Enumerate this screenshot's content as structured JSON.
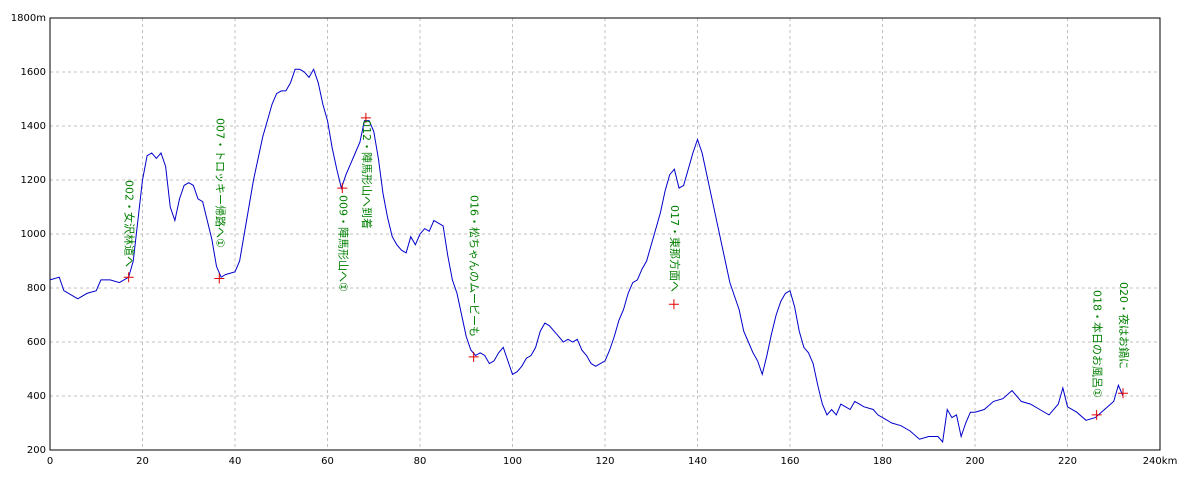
{
  "chart_data": {
    "type": "line",
    "xlim": [
      0,
      240
    ],
    "ylim": [
      200,
      1800
    ],
    "xticks": [
      0,
      20,
      40,
      60,
      80,
      100,
      120,
      140,
      160,
      180,
      200,
      220,
      {
        "value": 240,
        "label": "240km"
      }
    ],
    "yticks": [
      200,
      400,
      600,
      800,
      1000,
      1200,
      1400,
      1600,
      {
        "value": 1800,
        "label": "1800m"
      }
    ],
    "grid": true,
    "series": [
      {
        "color": "#0000cc",
        "x": [
          0,
          2,
          3,
          5,
          6,
          8,
          10,
          11,
          13,
          15,
          17,
          18,
          19,
          20,
          21,
          22,
          23,
          24,
          25,
          26,
          27,
          28,
          29,
          30,
          31,
          32,
          33,
          34,
          35,
          36,
          37,
          38,
          40,
          41,
          42,
          43,
          44,
          45,
          46,
          47,
          48,
          49,
          50,
          51,
          52,
          53,
          54,
          55,
          56,
          57,
          58,
          59,
          60,
          61,
          62,
          63,
          64,
          65,
          66,
          67,
          68,
          69,
          70,
          71,
          72,
          73,
          74,
          75,
          76,
          77,
          78,
          79,
          80,
          81,
          82,
          83,
          84,
          85,
          86,
          87,
          88,
          89,
          90,
          91,
          92,
          93,
          94,
          95,
          96,
          97,
          98,
          99,
          100,
          101,
          102,
          103,
          104,
          105,
          106,
          107,
          108,
          109,
          110,
          111,
          112,
          113,
          114,
          115,
          116,
          117,
          118,
          119,
          120,
          121,
          122,
          123,
          124,
          125,
          126,
          127,
          128,
          129,
          130,
          131,
          132,
          133,
          134,
          135,
          136,
          137,
          138,
          139,
          140,
          141,
          142,
          143,
          144,
          145,
          146,
          147,
          148,
          149,
          150,
          151,
          152,
          153,
          154,
          155,
          156,
          157,
          158,
          159,
          160,
          161,
          162,
          163,
          164,
          165,
          166,
          167,
          168,
          169,
          170,
          171,
          172,
          173,
          174,
          175,
          176,
          178,
          179,
          180,
          182,
          184,
          186,
          188,
          190,
          192,
          193,
          194,
          195,
          196,
          197,
          198,
          199,
          200,
          202,
          204,
          206,
          208,
          210,
          212,
          214,
          216,
          218,
          219,
          220,
          222,
          224,
          226,
          228,
          230,
          231,
          232
        ],
        "values": [
          830,
          840,
          790,
          770,
          760,
          780,
          790,
          830,
          830,
          820,
          840,
          900,
          1050,
          1200,
          1290,
          1300,
          1280,
          1300,
          1250,
          1100,
          1050,
          1130,
          1180,
          1190,
          1180,
          1130,
          1120,
          1050,
          980,
          880,
          840,
          850,
          860,
          900,
          1000,
          1100,
          1200,
          1280,
          1360,
          1420,
          1480,
          1520,
          1530,
          1530,
          1560,
          1610,
          1610,
          1600,
          1580,
          1610,
          1560,
          1480,
          1420,
          1320,
          1240,
          1170,
          1220,
          1260,
          1300,
          1340,
          1420,
          1420,
          1380,
          1280,
          1150,
          1060,
          990,
          960,
          940,
          930,
          990,
          960,
          1000,
          1020,
          1010,
          1050,
          1040,
          1030,
          920,
          830,
          780,
          700,
          620,
          570,
          550,
          560,
          550,
          520,
          530,
          560,
          580,
          530,
          480,
          490,
          510,
          540,
          550,
          580,
          640,
          670,
          660,
          640,
          620,
          600,
          610,
          600,
          610,
          570,
          550,
          520,
          510,
          520,
          530,
          570,
          620,
          680,
          720,
          780,
          820,
          830,
          870,
          900,
          960,
          1020,
          1080,
          1160,
          1220,
          1240,
          1170,
          1180,
          1240,
          1300,
          1350,
          1300,
          1220,
          1140,
          1060,
          980,
          900,
          820,
          770,
          720,
          640,
          600,
          560,
          530,
          480,
          550,
          630,
          700,
          750,
          780,
          790,
          730,
          640,
          580,
          560,
          520,
          440,
          370,
          330,
          350,
          330,
          370,
          360,
          350,
          380,
          370,
          360,
          350,
          330,
          320,
          300,
          290,
          270,
          240,
          250,
          250,
          230,
          350,
          320,
          330,
          250,
          300,
          340,
          340,
          350,
          380,
          390,
          420,
          380,
          370,
          350,
          330,
          370,
          430,
          360,
          340,
          310,
          320,
          350,
          380,
          440,
          400
        ]
      }
    ],
    "markers": {
      "color": "#e00000",
      "label_color": "#008000",
      "x": [
        17,
        36.6,
        63.2,
        68.3,
        91.6,
        134.9,
        226.3,
        232
      ],
      "values": [
        840,
        835,
        1170,
        1430,
        545,
        740,
        330,
        410
      ],
      "labels": [
        "002・女沢林道へ",
        "007・トロッキー帰路へ①",
        "009・陣馬形山へ①",
        "012・陣馬形山へ到着",
        "016・松ちゃんのムービーも",
        "017・東那方面へ",
        "018・本日のお風呂①",
        "020・夜はお鍋に"
      ]
    }
  }
}
